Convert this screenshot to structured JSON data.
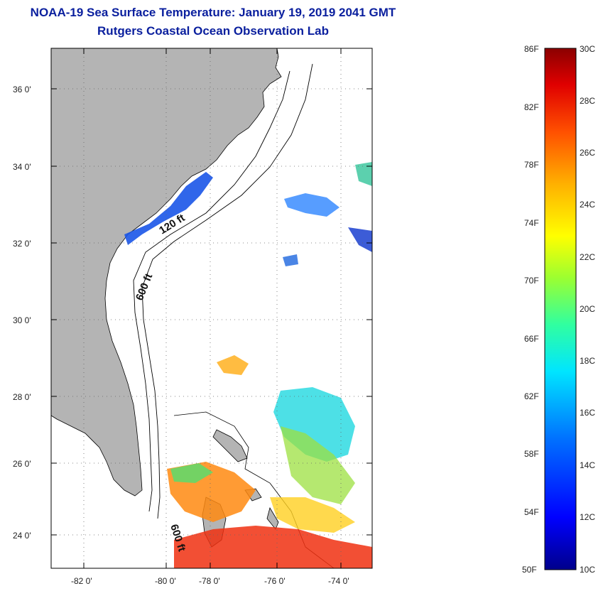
{
  "title": {
    "line1": "NOAA-19 Sea Surface Temperature:  January 19, 2019 2041 GMT",
    "line2": "Rutgers Coastal Ocean Observation Lab"
  },
  "map": {
    "lat_labels": [
      "36 0'",
      "34 0'",
      "32 0'",
      "30 0'",
      "28 0'",
      "26 0'",
      "24 0'"
    ],
    "lon_labels": [
      "-82 0'",
      "-80 0'",
      "-78 0'",
      "-76 0'",
      "-74 0'"
    ],
    "contour_labels": [
      "120 ft",
      "600 ft",
      "600 ft"
    ],
    "colors": {
      "land": "#b4b4b4",
      "ocean": "#ffffff",
      "coast": "#000000"
    }
  },
  "colorbar": {
    "fahrenheit_labels": [
      "86F",
      "82F",
      "78F",
      "74F",
      "70F",
      "66F",
      "62F",
      "58F",
      "54F",
      "50F"
    ],
    "celsius_labels": [
      "30C",
      "28C",
      "26C",
      "24C",
      "22C",
      "20C",
      "18C",
      "16C",
      "14C",
      "12C",
      "10C"
    ],
    "gradient_stops": [
      "#00008b",
      "#0000ff",
      "#0070ff",
      "#00e5ff",
      "#30ffa0",
      "#9cff30",
      "#ffff00",
      "#ffb000",
      "#ff5000",
      "#e00000",
      "#8b0000"
    ]
  }
}
